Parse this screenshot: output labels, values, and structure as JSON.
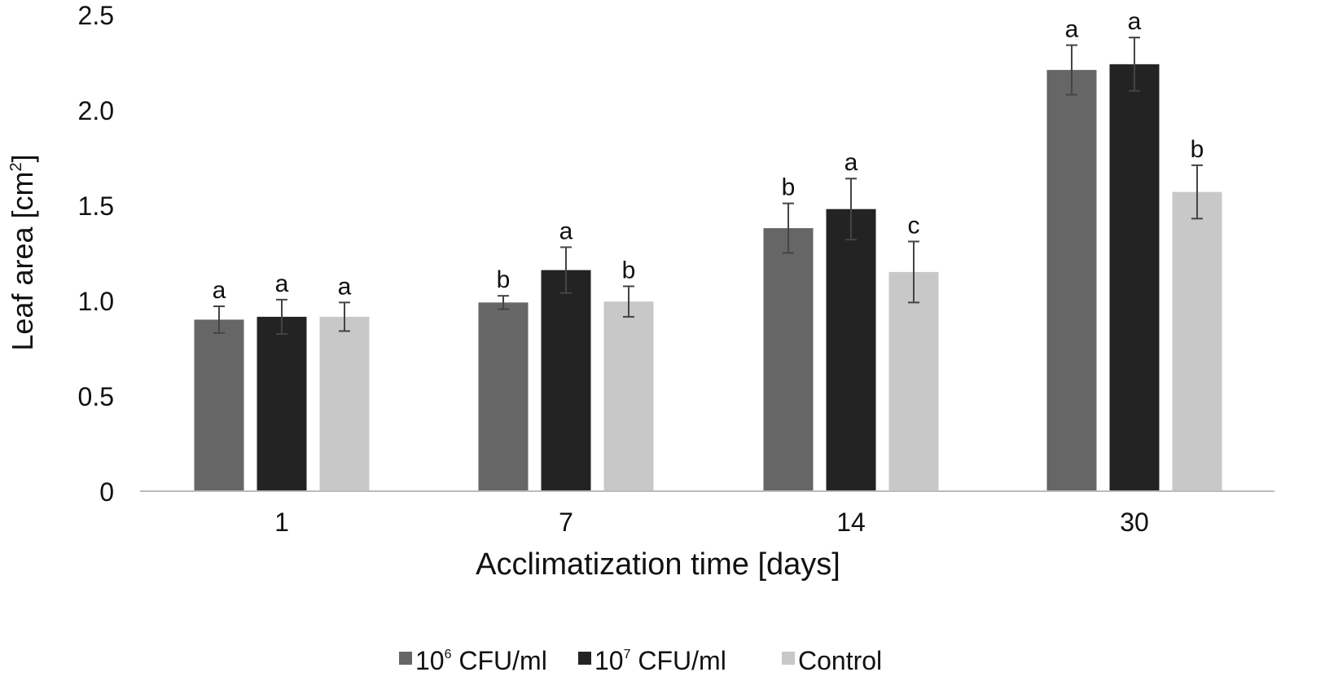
{
  "chart_data": {
    "type": "bar",
    "title": "",
    "xlabel": "Acclimatization time [days]",
    "ylabel": "Leaf area [cm",
    "ylabel_sup": "2",
    "ylabel_end": "]",
    "ylim": [
      0,
      2.5
    ],
    "yticks": [
      {
        "value": 0,
        "label": "0"
      },
      {
        "value": 0.5,
        "label": "0.5"
      },
      {
        "value": 1.0,
        "label": "1.0"
      },
      {
        "value": 1.5,
        "label": "1.5"
      },
      {
        "value": 2.0,
        "label": "2.0"
      },
      {
        "value": 2.5,
        "label": "2.5"
      }
    ],
    "grid": false,
    "legend_position": "bottom",
    "categories": [
      "1",
      "7",
      "14",
      "30"
    ],
    "series": [
      {
        "name": "10^6 CFU/ml",
        "legend_base": "10",
        "legend_sup": "6",
        "legend_rest": " CFU/ml",
        "color": "#666666",
        "values": [
          0.9,
          0.99,
          1.38,
          2.21
        ],
        "errors": [
          0.07,
          0.035,
          0.13,
          0.13
        ],
        "letters": [
          "a",
          "b",
          "b",
          "a"
        ]
      },
      {
        "name": "10^7 CFU/ml",
        "legend_base": "10",
        "legend_sup": "7",
        "legend_rest": " CFU/ml",
        "color": "#232323",
        "values": [
          0.915,
          1.16,
          1.48,
          2.24
        ],
        "errors": [
          0.09,
          0.12,
          0.16,
          0.14
        ],
        "letters": [
          "a",
          "a",
          "a",
          "a"
        ]
      },
      {
        "name": "Control",
        "legend_base": "Control",
        "legend_sup": "",
        "legend_rest": "",
        "color": "#c8c8c8",
        "values": [
          0.915,
          0.995,
          1.15,
          1.57
        ],
        "errors": [
          0.075,
          0.08,
          0.16,
          0.14
        ],
        "letters": [
          "a",
          "b",
          "c",
          "b"
        ]
      }
    ]
  }
}
